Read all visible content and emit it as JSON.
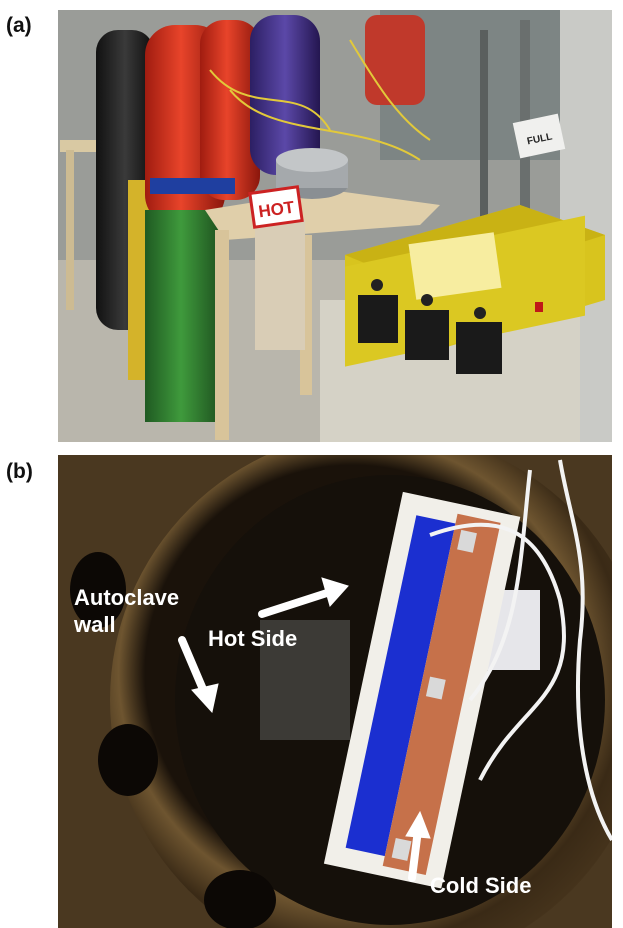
{
  "panels": [
    {
      "label": "(a)",
      "photo_text": {
        "sign": "HOT",
        "tag": "FULL"
      }
    },
    {
      "label": "(b)",
      "annotations": {
        "hot": "Hot Side",
        "wall_line1": "Autoclave",
        "wall_line2": "wall",
        "cold": "Cold Side"
      }
    }
  ]
}
